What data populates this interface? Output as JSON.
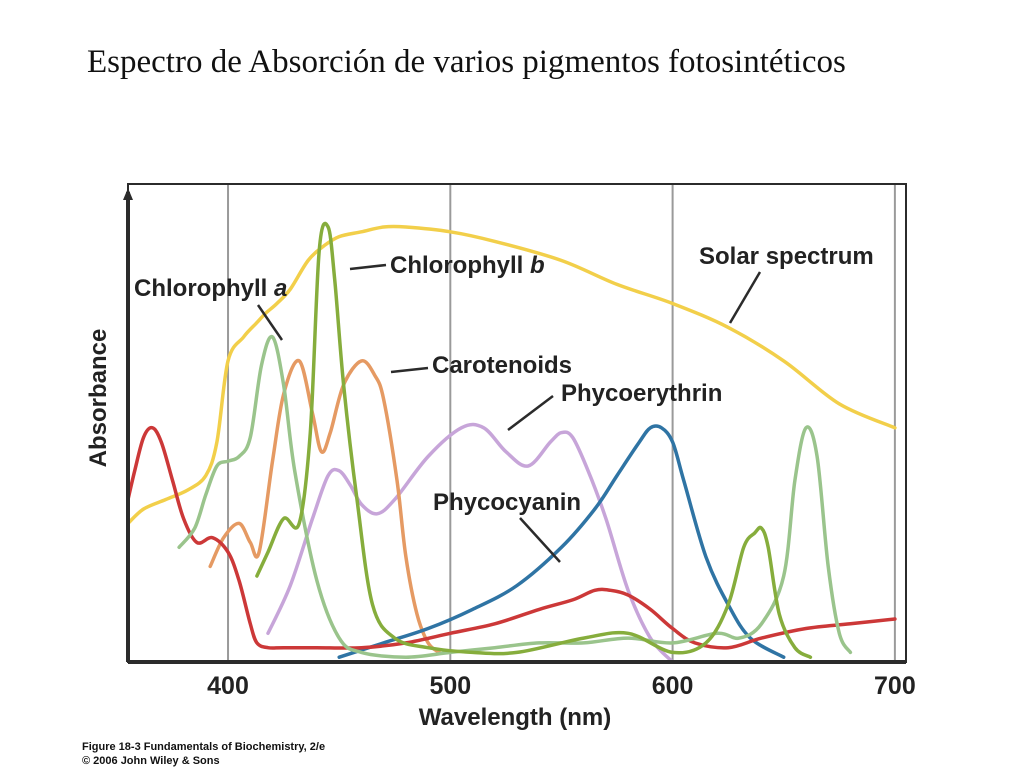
{
  "slide": {
    "title": "Espectro de Absorción de varios pigmentos fotosintéticos"
  },
  "credits": {
    "line1": "Figure 18-3  Fundamentals of Biochemistry, 2/e",
    "line2": "© 2006 John Wiley & Sons"
  },
  "chart_data": {
    "type": "line",
    "title": "",
    "xlabel": "Wavelength (nm)",
    "ylabel": "Absorbance",
    "xlim": [
      355,
      705
    ],
    "ylim": [
      0,
      1
    ],
    "xticks": [
      400,
      500,
      600,
      700
    ],
    "xtick_labels": [
      "400",
      "500",
      "600",
      "700"
    ],
    "grid": "vertical",
    "series": [
      {
        "name": "Solar spectrum",
        "color": "#f2cf4a",
        "x": [
          355,
          362,
          372,
          382,
          390,
          395,
          400,
          407,
          413,
          417,
          422,
          428,
          436,
          443,
          450,
          460,
          470,
          480,
          500,
          520,
          550,
          575,
          600,
          625,
          650,
          675,
          700
        ],
        "y": [
          0.29,
          0.32,
          0.34,
          0.36,
          0.39,
          0.46,
          0.63,
          0.68,
          0.71,
          0.73,
          0.75,
          0.78,
          0.84,
          0.87,
          0.89,
          0.9,
          0.91,
          0.91,
          0.9,
          0.88,
          0.84,
          0.79,
          0.75,
          0.7,
          0.63,
          0.54,
          0.49
        ]
      },
      {
        "name": "Chlorophyll a",
        "color": "#9ac48c",
        "x": [
          378,
          385,
          390,
          395,
          400,
          405,
          410,
          415,
          420,
          425,
          430,
          440,
          450,
          460,
          480,
          500,
          520,
          540,
          560,
          580,
          600,
          620,
          630,
          640,
          650,
          655,
          660,
          665,
          670,
          675,
          680
        ],
        "y": [
          0.24,
          0.28,
          0.35,
          0.41,
          0.42,
          0.43,
          0.47,
          0.62,
          0.68,
          0.58,
          0.4,
          0.17,
          0.05,
          0.02,
          0.01,
          0.02,
          0.03,
          0.04,
          0.04,
          0.05,
          0.04,
          0.06,
          0.05,
          0.08,
          0.18,
          0.38,
          0.49,
          0.43,
          0.2,
          0.06,
          0.02
        ]
      },
      {
        "name": "Chlorophyll b",
        "color": "#86ad3c",
        "x": [
          413,
          418,
          425,
          432,
          437,
          441,
          445,
          448,
          452,
          458,
          465,
          475,
          490,
          510,
          530,
          560,
          580,
          600,
          615,
          625,
          632,
          637,
          640,
          643,
          648,
          655,
          662
        ],
        "y": [
          0.18,
          0.23,
          0.3,
          0.29,
          0.48,
          0.86,
          0.91,
          0.8,
          0.58,
          0.34,
          0.12,
          0.05,
          0.03,
          0.02,
          0.02,
          0.05,
          0.06,
          0.02,
          0.04,
          0.12,
          0.24,
          0.27,
          0.28,
          0.24,
          0.1,
          0.03,
          0.01
        ]
      },
      {
        "name": "Carotenoids",
        "color": "#e59a63",
        "x": [
          392,
          398,
          405,
          410,
          414,
          420,
          425,
          432,
          438,
          442,
          446,
          452,
          460,
          466,
          470,
          476,
          480,
          485,
          490,
          495
        ],
        "y": [
          0.2,
          0.26,
          0.29,
          0.25,
          0.23,
          0.42,
          0.56,
          0.63,
          0.52,
          0.44,
          0.48,
          0.58,
          0.63,
          0.6,
          0.55,
          0.38,
          0.22,
          0.1,
          0.04,
          0.02
        ]
      },
      {
        "name": "Phycoerythrin",
        "color": "#c7a5d9",
        "x": [
          418,
          428,
          438,
          445,
          450,
          455,
          460,
          467,
          475,
          490,
          505,
          515,
          525,
          535,
          545,
          550,
          555,
          562,
          570,
          580,
          590,
          600
        ],
        "y": [
          0.06,
          0.16,
          0.3,
          0.39,
          0.4,
          0.37,
          0.33,
          0.31,
          0.34,
          0.43,
          0.49,
          0.49,
          0.44,
          0.41,
          0.46,
          0.48,
          0.47,
          0.4,
          0.3,
          0.15,
          0.05,
          0.0
        ]
      },
      {
        "name": "Phycocyanin",
        "color": "#2f74a4",
        "x": [
          450,
          470,
          490,
          510,
          530,
          550,
          565,
          575,
          585,
          590,
          595,
          600,
          605,
          615,
          625,
          635,
          650
        ],
        "y": [
          0.01,
          0.04,
          0.07,
          0.11,
          0.16,
          0.24,
          0.32,
          0.39,
          0.46,
          0.49,
          0.49,
          0.46,
          0.38,
          0.22,
          0.12,
          0.05,
          0.01
        ]
      },
      {
        "name": "",
        "color": "#cc3838",
        "x": [
          355,
          358,
          362,
          366,
          370,
          375,
          380,
          386,
          393,
          400,
          405,
          410,
          413,
          418,
          425,
          440,
          460,
          480,
          500,
          520,
          540,
          555,
          565,
          572,
          580,
          590,
          600,
          610,
          625,
          640,
          660,
          680,
          700
        ],
        "y": [
          0.34,
          0.4,
          0.47,
          0.49,
          0.46,
          0.38,
          0.3,
          0.25,
          0.26,
          0.23,
          0.17,
          0.08,
          0.04,
          0.03,
          0.03,
          0.03,
          0.03,
          0.04,
          0.06,
          0.08,
          0.11,
          0.13,
          0.15,
          0.15,
          0.14,
          0.11,
          0.07,
          0.04,
          0.03,
          0.05,
          0.07,
          0.08,
          0.09
        ]
      }
    ],
    "annotations": [
      {
        "text": "Chlorophyll ",
        "italic_suffix": "a",
        "series": 1
      },
      {
        "text": "Chlorophyll ",
        "italic_suffix": "b",
        "series": 2
      },
      {
        "text": "Carotenoids",
        "italic_suffix": "",
        "series": 3
      },
      {
        "text": "Phycoerythrin",
        "italic_suffix": "",
        "series": 4
      },
      {
        "text": "Phycocyanin",
        "italic_suffix": "",
        "series": 5
      },
      {
        "text": "Solar spectrum",
        "italic_suffix": "",
        "series": 0
      }
    ]
  }
}
